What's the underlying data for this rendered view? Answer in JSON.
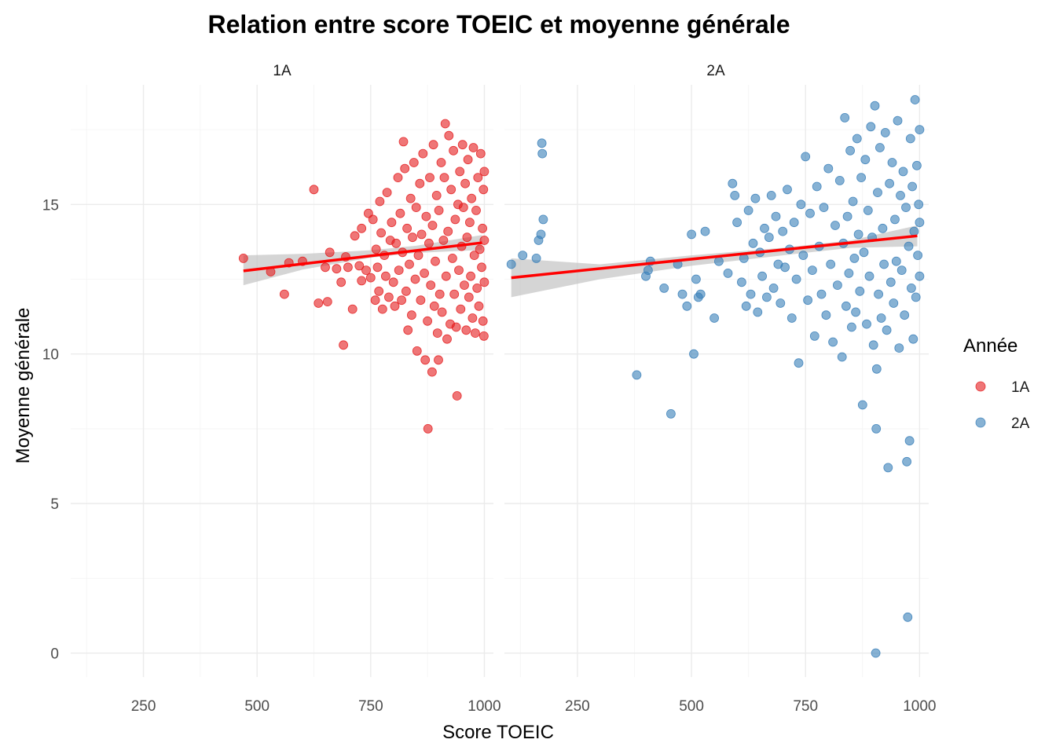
{
  "chart_data": {
    "type": "scatter",
    "title": "Relation entre score TOEIC et moyenne générale",
    "xlabel": "Score TOEIC",
    "ylabel": "Moyenne générale",
    "xlim": [
      90,
      1020
    ],
    "ylim": [
      -0.8,
      19
    ],
    "x_ticks": [
      250,
      500,
      750,
      1000
    ],
    "y_ticks": [
      0,
      5,
      10,
      15
    ],
    "grid": true,
    "legend": {
      "title": "Année",
      "position": "right",
      "entries": [
        {
          "label": "1A",
          "color": "#E41A1C"
        },
        {
          "label": "2A",
          "color": "#377EB8"
        }
      ]
    },
    "trend_color": "#FF0000",
    "ribbon_color": "#BEBEBE",
    "facets": [
      {
        "label": "1A",
        "color": "#E41A1C",
        "trend": {
          "x": [
            470,
            995
          ],
          "y": [
            12.78,
            13.72
          ]
        },
        "ribbon": {
          "x": [
            470,
            600,
            750,
            850,
            995
          ],
          "lower": [
            12.3,
            12.82,
            13.22,
            13.38,
            13.48
          ],
          "upper": [
            13.3,
            13.35,
            13.47,
            13.62,
            13.98
          ]
        },
        "points": [
          [
            470,
            13.2
          ],
          [
            530,
            12.75
          ],
          [
            560,
            12.0
          ],
          [
            570,
            13.05
          ],
          [
            600,
            13.1
          ],
          [
            625,
            15.5
          ],
          [
            635,
            11.7
          ],
          [
            650,
            12.9
          ],
          [
            655,
            11.75
          ],
          [
            660,
            13.4
          ],
          [
            675,
            12.85
          ],
          [
            685,
            12.4
          ],
          [
            690,
            10.3
          ],
          [
            695,
            13.25
          ],
          [
            700,
            12.9
          ],
          [
            710,
            11.5
          ],
          [
            715,
            13.95
          ],
          [
            725,
            12.95
          ],
          [
            730,
            14.2
          ],
          [
            730,
            12.45
          ],
          [
            740,
            12.8
          ],
          [
            745,
            14.7
          ],
          [
            750,
            12.55
          ],
          [
            755,
            14.5
          ],
          [
            760,
            11.8
          ],
          [
            762,
            13.5
          ],
          [
            765,
            12.9
          ],
          [
            768,
            12.1
          ],
          [
            770,
            15.1
          ],
          [
            773,
            14.05
          ],
          [
            776,
            11.5
          ],
          [
            780,
            13.3
          ],
          [
            783,
            12.6
          ],
          [
            786,
            15.4
          ],
          [
            790,
            11.9
          ],
          [
            793,
            13.8
          ],
          [
            796,
            14.4
          ],
          [
            800,
            12.4
          ],
          [
            803,
            11.6
          ],
          [
            806,
            13.7
          ],
          [
            810,
            15.9
          ],
          [
            812,
            12.8
          ],
          [
            815,
            14.7
          ],
          [
            818,
            11.8
          ],
          [
            820,
            13.4
          ],
          [
            822,
            17.1
          ],
          [
            825,
            16.2
          ],
          [
            828,
            12.1
          ],
          [
            830,
            14.2
          ],
          [
            832,
            10.8
          ],
          [
            835,
            13.0
          ],
          [
            838,
            15.2
          ],
          [
            840,
            11.3
          ],
          [
            842,
            13.9
          ],
          [
            845,
            16.4
          ],
          [
            848,
            12.5
          ],
          [
            850,
            14.9
          ],
          [
            852,
            10.1
          ],
          [
            855,
            13.3
          ],
          [
            858,
            15.7
          ],
          [
            860,
            11.8
          ],
          [
            862,
            14.0
          ],
          [
            865,
            16.7
          ],
          [
            868,
            12.7
          ],
          [
            870,
            9.8
          ],
          [
            872,
            14.6
          ],
          [
            875,
            11.1
          ],
          [
            876,
            7.5
          ],
          [
            878,
            13.7
          ],
          [
            880,
            15.9
          ],
          [
            882,
            12.3
          ],
          [
            885,
            9.4
          ],
          [
            886,
            14.3
          ],
          [
            888,
            17.0
          ],
          [
            890,
            11.6
          ],
          [
            892,
            13.1
          ],
          [
            895,
            15.3
          ],
          [
            897,
            10.7
          ],
          [
            899,
            9.8
          ],
          [
            900,
            14.8
          ],
          [
            902,
            12.0
          ],
          [
            905,
            16.4
          ],
          [
            907,
            11.4
          ],
          [
            910,
            13.8
          ],
          [
            912,
            15.9
          ],
          [
            914,
            17.7
          ],
          [
            916,
            12.6
          ],
          [
            918,
            10.5
          ],
          [
            920,
            14.1
          ],
          [
            922,
            17.3
          ],
          [
            925,
            11.0
          ],
          [
            927,
            15.5
          ],
          [
            930,
            13.2
          ],
          [
            932,
            16.8
          ],
          [
            934,
            12.0
          ],
          [
            936,
            14.5
          ],
          [
            938,
            10.9
          ],
          [
            940,
            8.6
          ],
          [
            942,
            15.0
          ],
          [
            944,
            12.8
          ],
          [
            946,
            16.1
          ],
          [
            948,
            11.5
          ],
          [
            950,
            13.6
          ],
          [
            952,
            17.0
          ],
          [
            954,
            14.9
          ],
          [
            956,
            12.3
          ],
          [
            958,
            15.7
          ],
          [
            960,
            10.8
          ],
          [
            962,
            13.9
          ],
          [
            964,
            16.5
          ],
          [
            966,
            11.9
          ],
          [
            968,
            14.4
          ],
          [
            970,
            12.6
          ],
          [
            972,
            15.2
          ],
          [
            974,
            11.2
          ],
          [
            976,
            16.9
          ],
          [
            978,
            13.3
          ],
          [
            980,
            10.7
          ],
          [
            982,
            14.8
          ],
          [
            984,
            12.2
          ],
          [
            986,
            15.9
          ],
          [
            988,
            11.6
          ],
          [
            990,
            13.5
          ],
          [
            992,
            16.7
          ],
          [
            994,
            12.9
          ],
          [
            996,
            14.2
          ],
          [
            997,
            11.1
          ],
          [
            998,
            15.5
          ],
          [
            999,
            10.6
          ],
          [
            1000,
            13.8
          ],
          [
            1000,
            16.1
          ],
          [
            1000,
            12.4
          ]
        ]
      },
      {
        "label": "2A",
        "color": "#377EB8",
        "trend": {
          "x": [
            105,
            995
          ],
          "y": [
            12.55,
            13.95
          ]
        },
        "ribbon": {
          "x": [
            105,
            300,
            500,
            700,
            850,
            995
          ],
          "lower": [
            11.9,
            12.5,
            12.95,
            13.3,
            13.55,
            13.6
          ],
          "upper": [
            13.2,
            13.0,
            13.3,
            13.55,
            13.8,
            14.3
          ]
        },
        "points": [
          [
            105,
            13.0
          ],
          [
            130,
            13.3
          ],
          [
            160,
            13.2
          ],
          [
            165,
            13.8
          ],
          [
            170,
            14.0
          ],
          [
            172,
            17.05
          ],
          [
            173,
            16.7
          ],
          [
            175,
            14.5
          ],
          [
            380,
            9.3
          ],
          [
            400,
            12.6
          ],
          [
            405,
            12.8
          ],
          [
            410,
            13.1
          ],
          [
            440,
            12.2
          ],
          [
            455,
            8.0
          ],
          [
            470,
            13.0
          ],
          [
            480,
            12.0
          ],
          [
            490,
            11.6
          ],
          [
            500,
            14.0
          ],
          [
            505,
            10.0
          ],
          [
            510,
            12.5
          ],
          [
            515,
            11.9
          ],
          [
            520,
            12.0
          ],
          [
            530,
            14.1
          ],
          [
            550,
            11.2
          ],
          [
            560,
            13.1
          ],
          [
            580,
            12.7
          ],
          [
            590,
            15.7
          ],
          [
            595,
            15.3
          ],
          [
            600,
            14.4
          ],
          [
            610,
            12.4
          ],
          [
            615,
            13.2
          ],
          [
            620,
            11.6
          ],
          [
            625,
            14.8
          ],
          [
            630,
            12.0
          ],
          [
            635,
            13.7
          ],
          [
            640,
            15.2
          ],
          [
            645,
            11.4
          ],
          [
            650,
            13.4
          ],
          [
            655,
            12.6
          ],
          [
            660,
            14.2
          ],
          [
            665,
            11.9
          ],
          [
            670,
            13.9
          ],
          [
            675,
            15.3
          ],
          [
            680,
            12.2
          ],
          [
            685,
            14.6
          ],
          [
            690,
            13.0
          ],
          [
            695,
            11.7
          ],
          [
            700,
            14.1
          ],
          [
            705,
            12.9
          ],
          [
            710,
            15.5
          ],
          [
            715,
            13.5
          ],
          [
            720,
            11.2
          ],
          [
            725,
            14.4
          ],
          [
            730,
            12.5
          ],
          [
            735,
            9.7
          ],
          [
            740,
            15.0
          ],
          [
            745,
            13.3
          ],
          [
            750,
            16.6
          ],
          [
            755,
            11.8
          ],
          [
            760,
            14.7
          ],
          [
            765,
            12.8
          ],
          [
            770,
            10.6
          ],
          [
            775,
            15.6
          ],
          [
            780,
            13.6
          ],
          [
            785,
            12.0
          ],
          [
            790,
            14.9
          ],
          [
            795,
            11.3
          ],
          [
            800,
            16.2
          ],
          [
            805,
            13.0
          ],
          [
            810,
            10.4
          ],
          [
            815,
            14.3
          ],
          [
            820,
            12.3
          ],
          [
            825,
            15.8
          ],
          [
            830,
            9.9
          ],
          [
            833,
            13.7
          ],
          [
            836,
            17.9
          ],
          [
            839,
            11.6
          ],
          [
            842,
            14.6
          ],
          [
            845,
            12.7
          ],
          [
            848,
            16.8
          ],
          [
            851,
            10.9
          ],
          [
            854,
            15.1
          ],
          [
            857,
            13.2
          ],
          [
            860,
            11.4
          ],
          [
            863,
            17.2
          ],
          [
            866,
            14.0
          ],
          [
            869,
            12.1
          ],
          [
            872,
            15.9
          ],
          [
            875,
            8.3
          ],
          [
            878,
            13.4
          ],
          [
            881,
            16.5
          ],
          [
            884,
            11.0
          ],
          [
            887,
            14.8
          ],
          [
            890,
            12.6
          ],
          [
            893,
            17.6
          ],
          [
            896,
            13.9
          ],
          [
            899,
            10.3
          ],
          [
            902,
            18.3
          ],
          [
            904,
            0.0
          ],
          [
            905,
            7.5
          ],
          [
            906,
            9.5
          ],
          [
            908,
            15.4
          ],
          [
            910,
            12.0
          ],
          [
            913,
            16.9
          ],
          [
            916,
            11.2
          ],
          [
            919,
            14.2
          ],
          [
            922,
            13.0
          ],
          [
            925,
            17.4
          ],
          [
            928,
            10.8
          ],
          [
            931,
            6.2
          ],
          [
            934,
            15.7
          ],
          [
            937,
            12.4
          ],
          [
            940,
            16.4
          ],
          [
            943,
            11.7
          ],
          [
            946,
            14.5
          ],
          [
            949,
            13.1
          ],
          [
            952,
            17.8
          ],
          [
            955,
            10.2
          ],
          [
            958,
            15.3
          ],
          [
            961,
            12.8
          ],
          [
            964,
            16.1
          ],
          [
            967,
            11.3
          ],
          [
            970,
            14.9
          ],
          [
            972,
            6.4
          ],
          [
            974,
            1.2
          ],
          [
            976,
            13.6
          ],
          [
            978,
            7.1
          ],
          [
            980,
            17.2
          ],
          [
            982,
            12.2
          ],
          [
            984,
            15.6
          ],
          [
            986,
            10.5
          ],
          [
            988,
            14.1
          ],
          [
            990,
            18.5
          ],
          [
            992,
            11.9
          ],
          [
            994,
            16.3
          ],
          [
            996,
            13.3
          ],
          [
            998,
            15.0
          ],
          [
            1000,
            12.6
          ],
          [
            1000,
            17.5
          ],
          [
            1000,
            14.4
          ]
        ]
      }
    ]
  }
}
